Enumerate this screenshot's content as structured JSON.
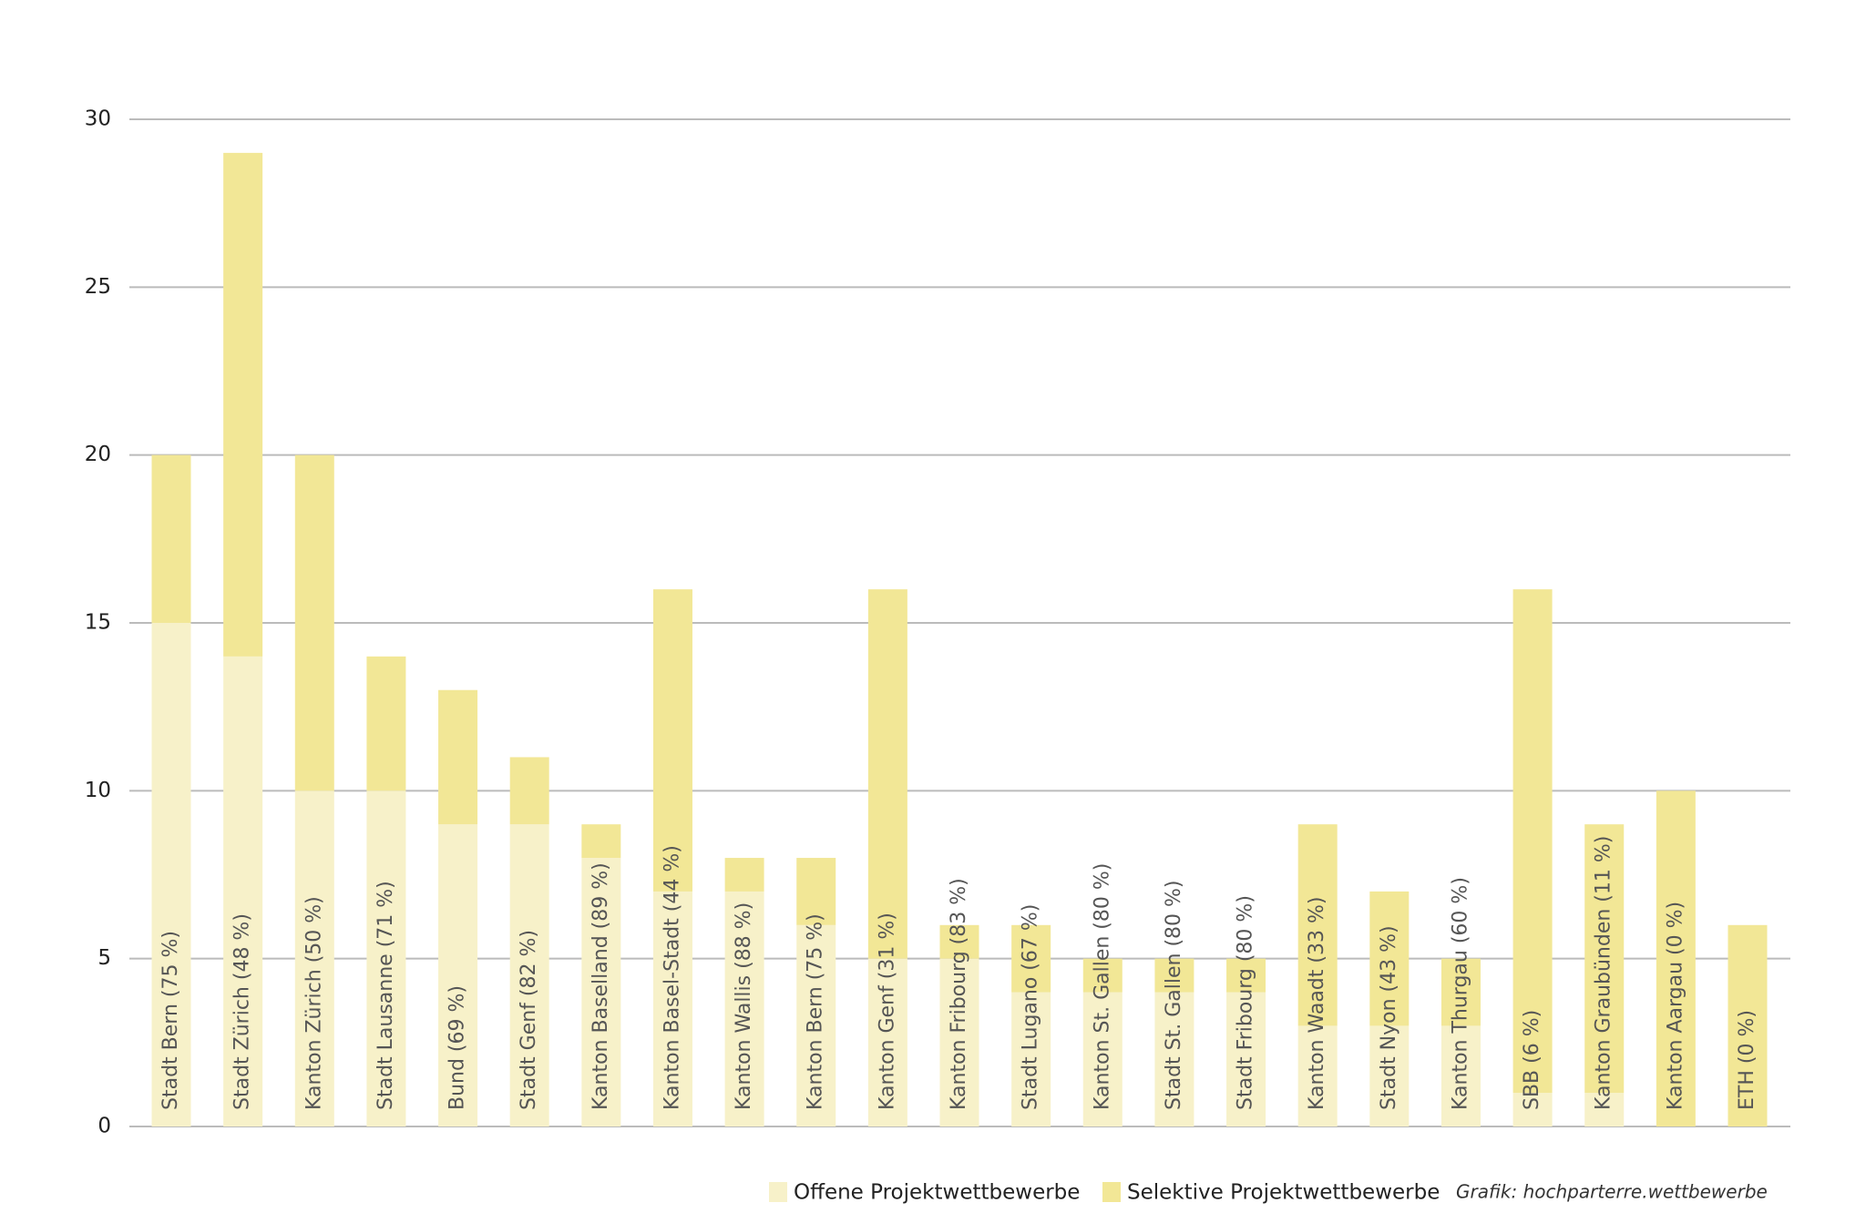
{
  "chart_data": {
    "type": "stacked_bar",
    "source": "Grafik: hochparterre.wettbewerbe",
    "categories": [
      "Stadt Bern (75 %)",
      "Stadt Zürich (48 %)",
      "Kanton Zürich (50 %)",
      "Stadt Lausanne (71 %)",
      "Bund (69 %)",
      "Stadt Genf (82 %)",
      "Kanton Baselland (89 %)",
      "Kanton Basel-Stadt (44 %)",
      "Kanton Wallis (88 %)",
      "Kanton Bern (75 %)",
      "Kanton Genf (31 %)",
      "Kanton Fribourg (83 %)",
      "Stadt Lugano (67 %)",
      "Kanton St. Gallen (80 %)",
      "Stadt St. Gallen (80 %)",
      "Stadt Fribourg (80 %)",
      "Kanton Waadt (33 %)",
      "Stadt Nyon (43 %)",
      "Kanton Thurgau (60 %)",
      "SBB (6 %)",
      "Kanton Graubünden (11 %)",
      "Kanton Aargau (0 %)",
      "ETH (0 %)"
    ],
    "series": [
      {
        "name": "Offene Projektwettbewerbe",
        "color": "#f7f1c9",
        "values": [
          15,
          14,
          10,
          10,
          9,
          9,
          8,
          7,
          7,
          6,
          5,
          5,
          4,
          4,
          4,
          4,
          3,
          3,
          3,
          1,
          1,
          0,
          0
        ]
      },
      {
        "name": "Selektive Projektwettbewerbe",
        "color": "#f2e796",
        "values": [
          5,
          15,
          10,
          4,
          4,
          2,
          1,
          9,
          1,
          2,
          11,
          1,
          2,
          1,
          1,
          1,
          6,
          4,
          2,
          15,
          8,
          10,
          6
        ]
      }
    ],
    "ylim": [
      0,
      30
    ],
    "yticks": [
      0,
      5,
      10,
      15,
      20,
      25,
      30
    ],
    "grid": true
  }
}
